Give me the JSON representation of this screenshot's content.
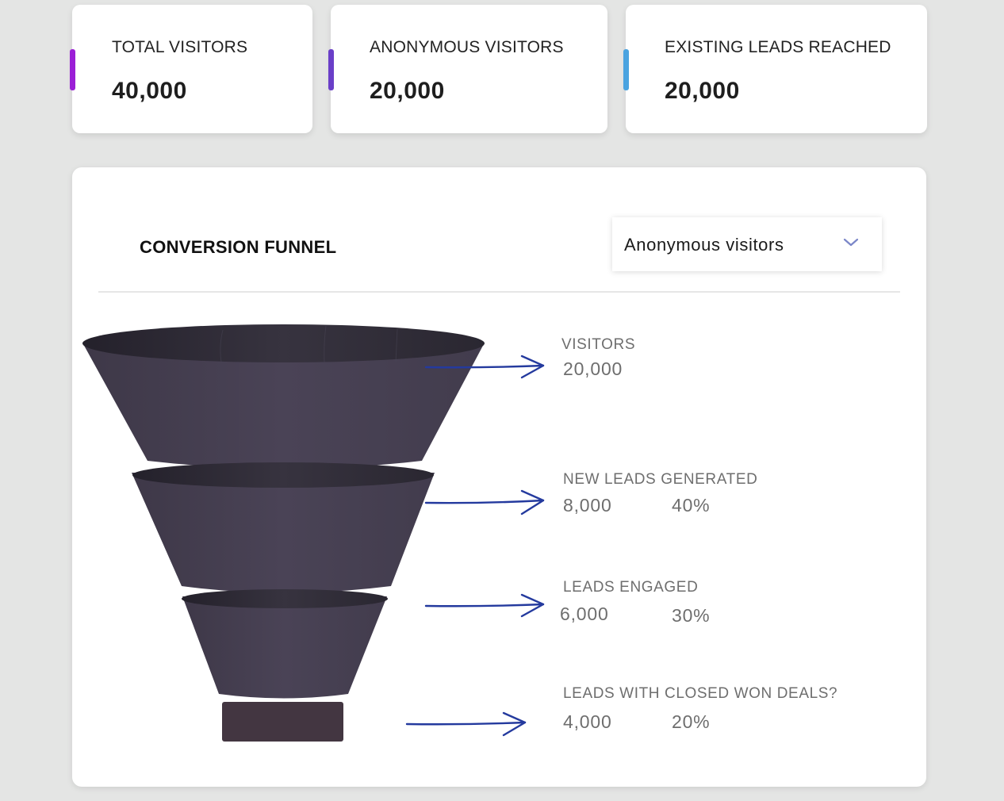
{
  "stats": [
    {
      "label": "TOTAL VISITORS",
      "value": "40,000",
      "accent_color": "#9b1fd6"
    },
    {
      "label": "ANONYMOUS VISITORS",
      "value": "20,000",
      "accent_color": "#6a3fc8"
    },
    {
      "label": "EXISTING LEADS REACHED",
      "value": "20,000",
      "accent_color": "#4aa3e0"
    }
  ],
  "funnel": {
    "title": "CONVERSION FUNNEL",
    "dropdown": {
      "selected": "Anonymous visitors",
      "icon": "chevron-down-icon"
    },
    "stages": [
      {
        "label": "VISITORS",
        "value": "20,000",
        "percent": ""
      },
      {
        "label": "NEW LEADS GENERATED",
        "value": "8,000",
        "percent": "40%"
      },
      {
        "label": "LEADS ENGAGED",
        "value": "6,000",
        "percent": "30%"
      },
      {
        "label": "LEADS WITH CLOSED WON DEALS?",
        "value": "4,000",
        "percent": "20%"
      }
    ],
    "colors": {
      "funnel_body": "#463f52",
      "funnel_top": "#2d2935",
      "arrow": "#243a9e"
    }
  }
}
